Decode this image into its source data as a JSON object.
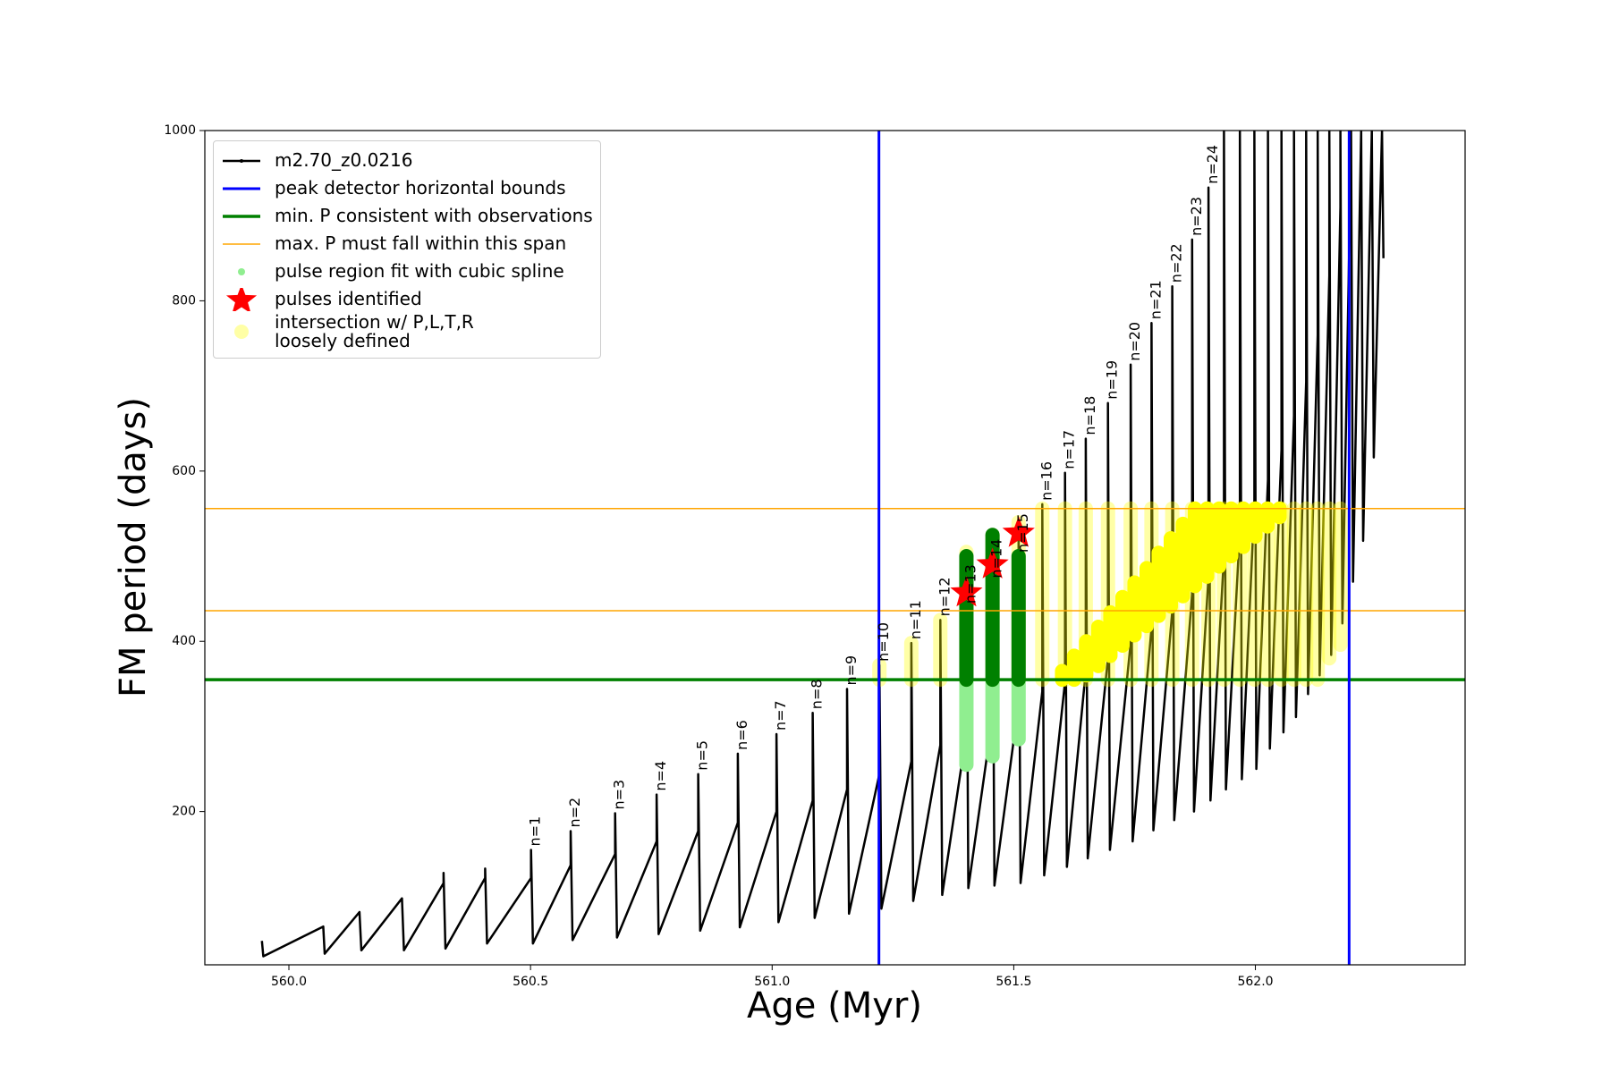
{
  "chart_data": {
    "type": "line",
    "x_label": "Age (Myr)",
    "y_label": "FM period (days)",
    "xlim": [
      559.826,
      562.434
    ],
    "ylim": [
      20,
      1000
    ],
    "xticks": [
      {
        "value": 560,
        "label": "560.0"
      },
      {
        "value": 560.5,
        "label": "560.5"
      },
      {
        "value": 561,
        "label": "561.0"
      },
      {
        "value": 561.5,
        "label": "561.5"
      },
      {
        "value": 562,
        "label": "562.0"
      }
    ],
    "yticks": [
      200,
      400,
      600,
      800,
      1000
    ],
    "legend": "upper-left",
    "series": [
      {
        "name": "m2.70_z0.0216",
        "type": "line",
        "color": "#000000",
        "linewidth": 2.5,
        "x": [
          559.944,
          559.947,
          560.071,
          560.074,
          560.146,
          560.15,
          560.234,
          560.238,
          560.32,
          560.32,
          560.324,
          560.406,
          560.406,
          560.41,
          560.501,
          560.501,
          560.505,
          560.583,
          560.583,
          560.587,
          560.675,
          560.675,
          560.679,
          560.761,
          560.761,
          560.765,
          560.847,
          560.847,
          560.851,
          560.929,
          560.929,
          560.933,
          561.009,
          561.009,
          561.013,
          561.084,
          561.084,
          561.088,
          561.155,
          561.155,
          561.159,
          561.222,
          561.222,
          561.226,
          561.288,
          561.288,
          561.292,
          561.348,
          561.348,
          561.352,
          561.402,
          561.402,
          561.406,
          561.456,
          561.456,
          561.46,
          561.51,
          561.51,
          561.514,
          561.559,
          561.559,
          561.563,
          561.606,
          561.606,
          561.61,
          561.649,
          561.649,
          561.653,
          561.695,
          561.695,
          561.699,
          561.742,
          561.742,
          561.746,
          561.785,
          561.785,
          561.789,
          561.828,
          561.828,
          561.832,
          561.869,
          561.869,
          561.873,
          561.903,
          561.903,
          561.907,
          561.935,
          561.935,
          561.939,
          561.968,
          561.968,
          561.972,
          561.998,
          561.998,
          562.002,
          562.026,
          562.026,
          562.03,
          562.054,
          562.054,
          562.058,
          562.08,
          562.08,
          562.084,
          562.105,
          562.105,
          562.109,
          562.129,
          562.129,
          562.133,
          562.153,
          562.153,
          562.157,
          562.176,
          562.176,
          562.18,
          562.198,
          562.198,
          562.202,
          562.219,
          562.223,
          562.241,
          562.245,
          562.262,
          562.265
        ],
        "values": [
          48,
          30,
          65,
          33,
          82,
          37,
          98,
          37,
          116,
          128,
          39,
          122,
          133,
          45,
          122,
          155,
          45,
          137,
          177,
          49,
          150,
          198,
          52,
          165,
          220,
          56,
          177,
          244,
          60,
          187,
          268,
          64,
          200,
          291,
          70,
          213,
          316,
          75,
          226,
          344,
          80,
          244,
          372,
          86,
          259,
          398,
          95,
          278,
          425,
          102,
          293,
          505,
          110,
          311,
          525,
          113,
          327,
          540,
          116,
          341,
          561,
          125,
          352,
          598,
          135,
          365,
          638,
          145,
          380,
          680,
          155,
          398,
          725,
          165,
          415,
          774,
          178,
          435,
          817,
          190,
          455,
          872,
          200,
          475,
          933,
          213,
          500,
          1000,
          226,
          530,
          1000,
          238,
          560,
          1000,
          250,
          590,
          1000,
          274,
          625,
          1000,
          293,
          665,
          1000,
          311,
          705,
          1000,
          338,
          760,
          1000,
          360,
          830,
          1000,
          384,
          910,
          1000,
          421,
          980,
          1000,
          470,
          1000,
          518,
          1000,
          616,
          1000,
          850
        ]
      },
      {
        "name": "peak detector horizontal bounds",
        "type": "vline",
        "color": "#0000ff",
        "linewidth": 3,
        "x": [
          561.221,
          562.194
        ]
      },
      {
        "name": "min. P consistent with observations",
        "type": "hline",
        "color": "#008000",
        "linewidth": 3.5,
        "values": [
          355
        ]
      },
      {
        "name": "max. P must fall within this span",
        "type": "hline",
        "color": "#ffa500",
        "linewidth": 1.5,
        "values": [
          436,
          556
        ]
      },
      {
        "name": "pulse region fit with cubic spline",
        "type": "range",
        "color": "#90ee90",
        "alpha": 1,
        "x": [
          561.402,
          561.456,
          561.51
        ],
        "low": [
          255,
          265,
          285
        ],
        "high": [
          355,
          355,
          355
        ]
      },
      {
        "name": "pulses identified",
        "type": "star",
        "color": "#ff0000",
        "x": [
          561.402,
          561.456,
          561.51
        ],
        "values": [
          457,
          490,
          527
        ]
      },
      {
        "name": "intersection w/ P,L,T,R\nloosely defined",
        "type": "range",
        "color": "#ffff00",
        "alpha": 0.35,
        "x": [
          561.222,
          561.288,
          561.348,
          561.402,
          561.456,
          561.51,
          561.559,
          561.606,
          561.649,
          561.695,
          561.742,
          561.785,
          561.828,
          561.869,
          561.903,
          561.935,
          561.968,
          561.998,
          562.026,
          562.054,
          562.08,
          562.105,
          562.129,
          562.153,
          562.176
        ],
        "low": [
          355,
          355,
          355,
          355,
          355,
          355,
          355,
          355,
          355,
          355,
          355,
          355,
          355,
          355,
          355,
          355,
          355,
          355,
          355,
          355,
          355,
          355,
          355,
          380,
          396
        ],
        "high": [
          372,
          398,
          425,
          505,
          525,
          540,
          556,
          556,
          556,
          556,
          556,
          556,
          556,
          556,
          556,
          556,
          556,
          556,
          556,
          556,
          556,
          556,
          556,
          556,
          556
        ]
      },
      {
        "type": "range",
        "color": "#ffff00",
        "alpha": 1,
        "x": [
          561.6,
          561.625,
          561.65,
          561.675,
          561.7,
          561.725,
          561.75,
          561.775,
          561.8,
          561.825,
          561.85,
          561.875,
          561.9,
          561.925,
          561.95,
          561.975,
          562.0,
          562.025,
          562.05
        ],
        "low": [
          355,
          355,
          360,
          371,
          383,
          395,
          407,
          418,
          430,
          441,
          453,
          465,
          476,
          488,
          500,
          511,
          523,
          535,
          546
        ],
        "high": [
          365,
          383,
          400,
          417,
          434,
          452,
          469,
          486,
          504,
          521,
          538,
          556,
          556,
          556,
          556,
          556,
          556,
          556,
          556
        ]
      },
      {
        "type": "range",
        "color": "#008000",
        "alpha": 1,
        "x": [
          561.402,
          561.456,
          561.51
        ],
        "low": [
          355,
          355,
          355
        ],
        "high": [
          500,
          525,
          500
        ]
      }
    ],
    "annotations": [
      {
        "text": "n=1",
        "x": 560.501,
        "y": 155
      },
      {
        "text": "n=2",
        "x": 560.583,
        "y": 177
      },
      {
        "text": "n=3",
        "x": 560.675,
        "y": 198
      },
      {
        "text": "n=4",
        "x": 560.761,
        "y": 220
      },
      {
        "text": "n=5",
        "x": 560.847,
        "y": 244
      },
      {
        "text": "n=6",
        "x": 560.929,
        "y": 268
      },
      {
        "text": "n=7",
        "x": 561.009,
        "y": 291
      },
      {
        "text": "n=8",
        "x": 561.084,
        "y": 316
      },
      {
        "text": "n=9",
        "x": 561.155,
        "y": 344
      },
      {
        "text": "n=10",
        "x": 561.222,
        "y": 372
      },
      {
        "text": "n=11",
        "x": 561.288,
        "y": 398
      },
      {
        "text": "n=12",
        "x": 561.348,
        "y": 425
      },
      {
        "text": "n=13",
        "x": 561.402,
        "y": 440
      },
      {
        "text": "n=14",
        "x": 561.456,
        "y": 470
      },
      {
        "text": "n=15",
        "x": 561.51,
        "y": 500
      },
      {
        "text": "n=16",
        "x": 561.559,
        "y": 561
      },
      {
        "text": "n=17",
        "x": 561.606,
        "y": 598
      },
      {
        "text": "n=18",
        "x": 561.649,
        "y": 638
      },
      {
        "text": "n=19",
        "x": 561.695,
        "y": 680
      },
      {
        "text": "n=20",
        "x": 561.742,
        "y": 725
      },
      {
        "text": "n=21",
        "x": 561.785,
        "y": 774
      },
      {
        "text": "n=22",
        "x": 561.828,
        "y": 817
      },
      {
        "text": "n=23",
        "x": 561.869,
        "y": 872
      },
      {
        "text": "n=24",
        "x": 561.903,
        "y": 933
      }
    ]
  }
}
